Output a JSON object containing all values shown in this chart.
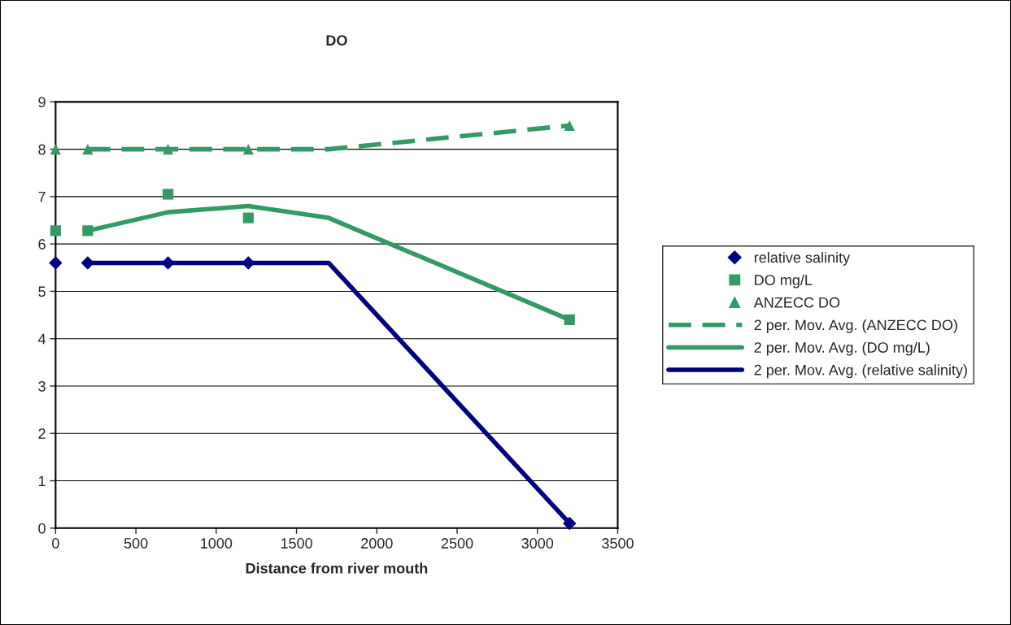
{
  "chart_data": {
    "type": "scatter",
    "title": "DO",
    "xlabel": "Distance from river mouth",
    "xlim": [
      0,
      3500
    ],
    "xticks": [
      0,
      500,
      1000,
      1500,
      2000,
      2500,
      3000,
      3500
    ],
    "ylim": [
      0,
      9
    ],
    "yticks": [
      0,
      1,
      2,
      3,
      4,
      5,
      6,
      7,
      8,
      9
    ],
    "grid": "y",
    "legend": "right",
    "series": [
      {
        "name": "relative salinity",
        "marker": "diamond",
        "color": "#000080",
        "x": [
          0,
          200,
          700,
          1200,
          3200
        ],
        "values": [
          5.6,
          5.6,
          5.6,
          5.6,
          0.1
        ]
      },
      {
        "name": "DO mg/L",
        "marker": "square",
        "color": "#339966",
        "x": [
          0,
          200,
          700,
          1200,
          3200
        ],
        "values": [
          6.28,
          6.28,
          7.05,
          6.55,
          4.4
        ]
      },
      {
        "name": "ANZECC DO",
        "marker": "triangle",
        "color": "#339966",
        "x": [
          0,
          200,
          700,
          1200,
          3200
        ],
        "values": [
          8.0,
          8.0,
          8.0,
          8.0,
          8.5
        ]
      },
      {
        "name": "2 per. Mov. Avg. (ANZECC DO)",
        "type": "line",
        "line_style": "dashed",
        "color": "#339966",
        "x": [
          200,
          700,
          1200,
          1700,
          3200
        ],
        "values": [
          8.0,
          8.0,
          8.0,
          8.0,
          8.5
        ]
      },
      {
        "name": "2 per. Mov. Avg. (DO mg/L)",
        "type": "line",
        "line_style": "solid",
        "color": "#339966",
        "x": [
          200,
          700,
          1200,
          1700,
          3200
        ],
        "values": [
          6.28,
          6.67,
          6.8,
          6.55,
          4.4
        ]
      },
      {
        "name": "2 per. Mov. Avg. (relative salinity)",
        "type": "line",
        "line_style": "solid",
        "color": "#000080",
        "x": [
          200,
          700,
          1200,
          1700,
          3200
        ],
        "values": [
          5.6,
          5.6,
          5.6,
          5.6,
          0.1
        ]
      }
    ]
  }
}
